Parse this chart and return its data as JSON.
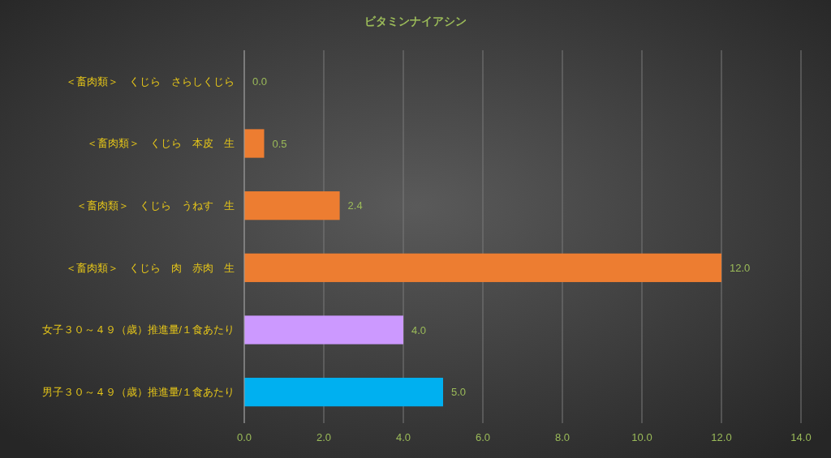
{
  "chart_data": {
    "type": "bar",
    "orientation": "horizontal",
    "title": "ビタミンナイアシン",
    "categories": [
      "＜畜肉類＞　くじら　さらしくじら",
      "＜畜肉類＞　くじら　本皮　生",
      "＜畜肉類＞　くじら　うねす　生",
      "＜畜肉類＞　くじら　肉　赤肉　生",
      "女子３０～４９（歳）推進量/１食あたり",
      "男子３０～４９（歳）推進量/１食あたり"
    ],
    "values": [
      0.0,
      0.5,
      2.4,
      12.0,
      4.0,
      5.0
    ],
    "colors": [
      "#ed7d31",
      "#ed7d31",
      "#ed7d31",
      "#ed7d31",
      "#cc99ff",
      "#00b0f0"
    ],
    "value_labels": [
      "0.0",
      "0.5",
      "2.4",
      "12.0",
      "4.0",
      "5.0"
    ],
    "xlim": [
      0,
      14
    ],
    "xticks": [
      {
        "value": 0,
        "label": "0.0"
      },
      {
        "value": 2,
        "label": "2.0"
      },
      {
        "value": 4,
        "label": "4.0"
      },
      {
        "value": 6,
        "label": "6.0"
      },
      {
        "value": 8,
        "label": "8.0"
      },
      {
        "value": 10,
        "label": "10.0"
      },
      {
        "value": 12,
        "label": "12.0"
      },
      {
        "value": 14,
        "label": "14.0"
      }
    ],
    "grid": "x"
  }
}
